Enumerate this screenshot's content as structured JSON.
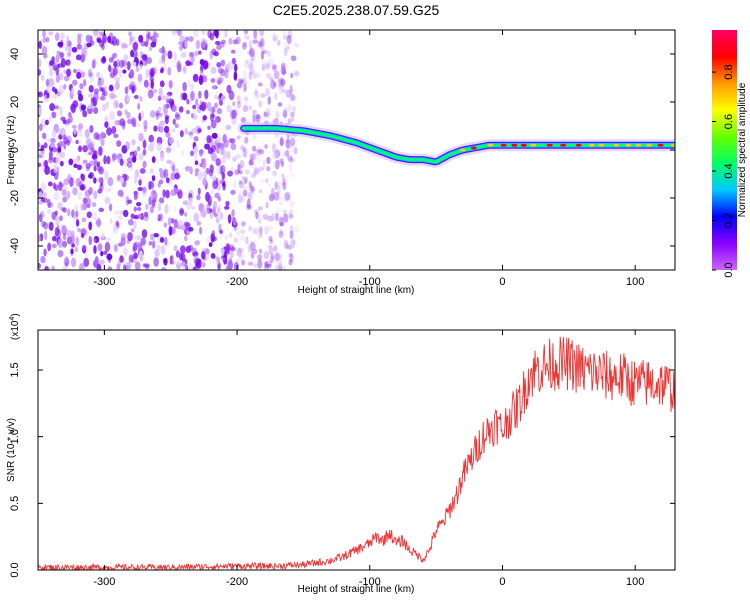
{
  "title": "C2E5.2025.238.07.59.G25",
  "chart_data": [
    {
      "type": "heatmap",
      "xlabel": "Height of straight line (km)",
      "ylabel": "Frequency (Hz)",
      "xlim": [
        -350,
        130
      ],
      "ylim": [
        -50,
        50
      ],
      "xticks": [
        -300,
        -200,
        -100,
        0,
        100
      ],
      "yticks": [
        -40,
        -20,
        0,
        20,
        40
      ],
      "xtick_labels": [
        "-300",
        "-200",
        "-100",
        "0",
        "100"
      ],
      "ytick_labels": [
        "-40",
        "-20",
        "0",
        "20",
        "40"
      ],
      "noise_region_x": [
        -350,
        -155
      ],
      "signal_track": {
        "x": [
          -195,
          -170,
          -150,
          -130,
          -110,
          -95,
          -80,
          -70,
          -60,
          -50,
          -40,
          -30,
          -20,
          -10,
          0,
          20,
          50,
          80,
          110,
          130
        ],
        "y": [
          9,
          9,
          8,
          6,
          3,
          0,
          -3,
          -4,
          -4,
          -5,
          -2,
          0,
          1,
          2,
          2,
          2,
          2,
          2,
          2,
          2
        ]
      },
      "colorbar": {
        "label": "Normalized spectral amplitude",
        "range": [
          0,
          0.97
        ],
        "ticks": [
          0.0,
          0.2,
          0.4,
          0.6,
          0.8
        ],
        "tick_labels": [
          "0.0",
          "0.2",
          "0.4",
          "0.6",
          "0.8"
        ],
        "colors": [
          "#cc66ff",
          "#8800ff",
          "#0000ff",
          "#00c8ff",
          "#00ff66",
          "#66ff00",
          "#ffff00",
          "#ff9900",
          "#ff0000",
          "#ff0066"
        ]
      },
      "grid": false
    },
    {
      "type": "line",
      "xlabel": "Height of straight line (km)",
      "ylabel": "SNR (10 * v/v)",
      "scale_label": "(x10",
      "scale_exponent": "4",
      "scale_close": ")",
      "xlim": [
        -350,
        130
      ],
      "ylim": [
        0,
        1.8
      ],
      "xticks": [
        -300,
        -200,
        -100,
        0,
        100
      ],
      "yticks": [
        0.0,
        0.5,
        1.0,
        1.5
      ],
      "xtick_labels": [
        "-300",
        "-200",
        "-100",
        "0",
        "100"
      ],
      "ytick_labels": [
        "0.0",
        "0.5",
        "1.0",
        "1.5"
      ],
      "series": [
        {
          "color": "#ee3333",
          "x": [
            -350,
            -300,
            -250,
            -200,
            -170,
            -150,
            -130,
            -120,
            -110,
            -100,
            -95,
            -90,
            -85,
            -80,
            -75,
            -70,
            -65,
            -60,
            -55,
            -50,
            -45,
            -40,
            -35,
            -30,
            -25,
            -20,
            -15,
            -10,
            -5,
            0,
            5,
            10,
            15,
            20,
            25,
            30,
            40,
            50,
            60,
            70,
            80,
            90,
            100,
            110,
            120,
            130
          ],
          "y": [
            0.02,
            0.02,
            0.02,
            0.03,
            0.03,
            0.04,
            0.07,
            0.1,
            0.15,
            0.2,
            0.25,
            0.22,
            0.28,
            0.2,
            0.22,
            0.15,
            0.12,
            0.08,
            0.15,
            0.3,
            0.35,
            0.45,
            0.55,
            0.7,
            0.8,
            0.9,
            1.0,
            1.05,
            1.1,
            1.05,
            1.15,
            1.2,
            1.3,
            1.45,
            1.5,
            1.52,
            1.55,
            1.55,
            1.5,
            1.48,
            1.45,
            1.45,
            1.4,
            1.4,
            1.4,
            1.35
          ]
        }
      ],
      "grid": false
    }
  ]
}
